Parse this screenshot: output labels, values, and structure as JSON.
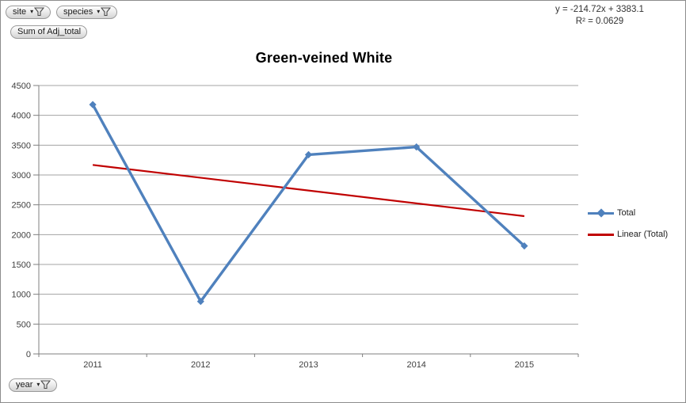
{
  "pivot_buttons": {
    "site": "site",
    "species": "species",
    "value_field": "Sum of Adj_total",
    "axis_field": "year"
  },
  "trendline_annotation": {
    "equation": "y = -214.72x + 3383.1",
    "r_squared": "R² = 0.0629"
  },
  "chart_data": {
    "type": "line",
    "title": "Green-veined White",
    "categories": [
      "2011",
      "2012",
      "2013",
      "2014",
      "2015"
    ],
    "series": [
      {
        "name": "Total",
        "values": [
          4180,
          880,
          3340,
          3470,
          1810
        ],
        "color": "#4F81BD",
        "marker": "diamond"
      },
      {
        "name": "Linear (Total)",
        "kind": "trendline",
        "values": [
          3168.4,
          2309.5
        ],
        "equation": "y = -214.72x + 3383.1",
        "r_squared": 0.0629,
        "color": "#C00000"
      }
    ],
    "xlabel": "",
    "ylabel": "",
    "ylim": [
      0,
      4500
    ],
    "ytick_interval": 500,
    "grid": "horizontal",
    "legend_position": "right",
    "colors": {
      "grid": "#A3A3A3",
      "axis": "#7F7F7F",
      "text": "#404040"
    }
  }
}
